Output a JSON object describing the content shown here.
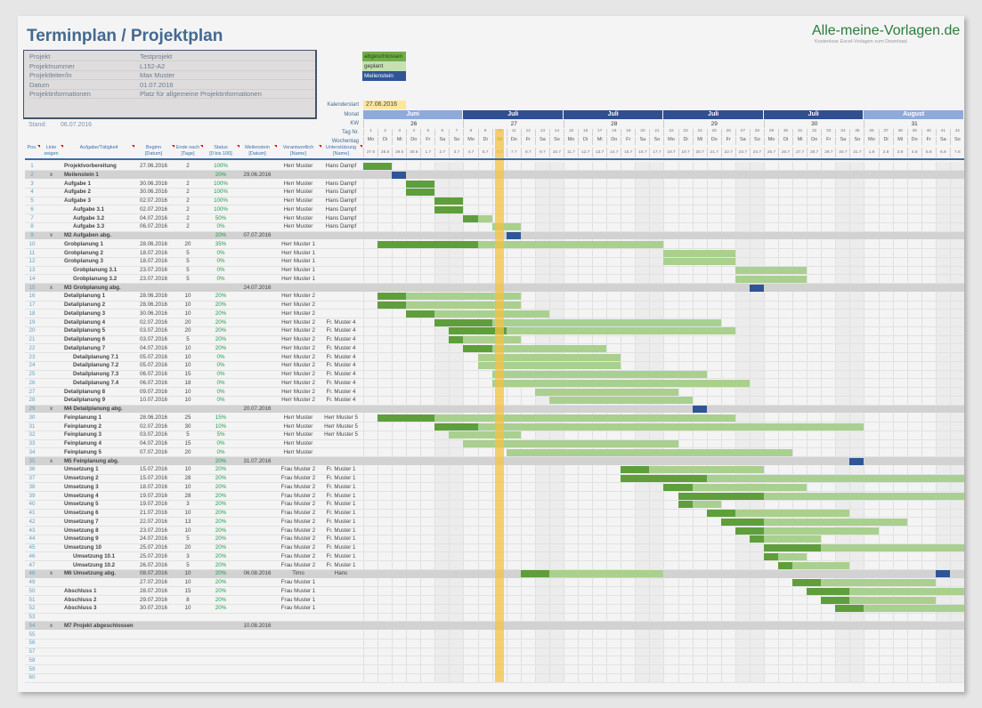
{
  "title": "Terminplan / Projektplan",
  "info": [
    {
      "label": "Projekt",
      "value": "Testprojekt"
    },
    {
      "label": "Projektnummer",
      "value": "L152-A2"
    },
    {
      "label": "Projektleiter/in",
      "value": "Max Muster"
    },
    {
      "label": "Datum",
      "value": "01.07.2016"
    },
    {
      "label": "Projektinformationen",
      "value": "Platz für allgemeine Projektinformationen"
    }
  ],
  "stand_label": "Stand:",
  "stand_value": "06.07.2016",
  "legend": {
    "done": "abgeschlossen",
    "planned": "geplant",
    "milestone": "Meilenstein"
  },
  "logo": {
    "name": "Alle-meine-Vorlagen.de",
    "tagline": "Kostenlose Excel-Vorlagen zum Download"
  },
  "colors": {
    "done": "#5e9e3b",
    "planned": "#a9d08e",
    "milestone": "#2f5597",
    "today": "#f5c242",
    "month_dark": "#2f4f8f",
    "month_light": "#8eaadb",
    "status": "#1e9e4a"
  },
  "calendar": {
    "start_label": "Kalenderstart",
    "start": "27.06.2016",
    "row_labels": {
      "month": "Monat",
      "kw": "KW",
      "daynr": "Tag Nr.",
      "weekday": "Wochentag"
    },
    "today": "06.07.2016",
    "months": [
      {
        "label": "Juni",
        "days": 7,
        "dark": false
      },
      {
        "label": "Juli",
        "days": 7,
        "dark": true
      },
      {
        "label": "Juli",
        "days": 7,
        "dark": true
      },
      {
        "label": "Juli",
        "days": 7,
        "dark": true
      },
      {
        "label": "Juli",
        "days": 7,
        "dark": true
      },
      {
        "label": "August",
        "days": 7,
        "dark": false
      }
    ],
    "kw": [
      "26",
      "27",
      "28",
      "29",
      "30",
      "31"
    ],
    "daynr": [
      "1",
      "2",
      "3",
      "4",
      "5",
      "6",
      "7",
      "8",
      "9",
      "10",
      "11",
      "12",
      "13",
      "14",
      "15",
      "16",
      "17",
      "18",
      "19",
      "20",
      "21",
      "22",
      "23",
      "24",
      "25",
      "26",
      "27",
      "28",
      "29",
      "30",
      "31",
      "32",
      "33",
      "34",
      "35",
      "36",
      "37",
      "38",
      "39",
      "40",
      "41",
      "42"
    ],
    "weekday": [
      "Mo",
      "Di",
      "Mi",
      "Do",
      "Fr",
      "Sa",
      "So",
      "Mo",
      "Di",
      "Mi",
      "Do",
      "Fr",
      "Sa",
      "So",
      "Mo",
      "Di",
      "Mi",
      "Do",
      "Fr",
      "Sa",
      "So",
      "Mo",
      "Di",
      "Mi",
      "Do",
      "Fr",
      "Sa",
      "So",
      "Mo",
      "Di",
      "Mi",
      "Do",
      "Fr",
      "Sa",
      "So",
      "Mo",
      "Di",
      "Mi",
      "Do",
      "Fr",
      "Sa",
      "So"
    ],
    "dates": [
      "27.6",
      "28.6",
      "29.6",
      "30.6",
      "1.7",
      "2.7",
      "3.7",
      "4.7",
      "5.7",
      "6.7",
      "7.7",
      "8.7",
      "9.7",
      "10.7",
      "11.7",
      "12.7",
      "13.7",
      "14.7",
      "15.7",
      "16.7",
      "17.7",
      "18.7",
      "19.7",
      "20.7",
      "21.7",
      "22.7",
      "23.7",
      "24.7",
      "25.7",
      "26.7",
      "27.7",
      "28.7",
      "29.7",
      "30.7",
      "31.7",
      "1.8",
      "2.8",
      "3.8",
      "4.8",
      "5.8",
      "6.8",
      "7.8"
    ]
  },
  "columns": [
    {
      "l1": "Pos.",
      "l2": ""
    },
    {
      "l1": "Linie",
      "l2": "zeigen"
    },
    {
      "l1": "Aufgabe/Tätigkeit",
      "l2": ""
    },
    {
      "l1": "Beginn",
      "l2": "[Datum]"
    },
    {
      "l1": "Ende nach",
      "l2": "[Tage]"
    },
    {
      "l1": "Status",
      "l2": "[0 bis 100]"
    },
    {
      "l1": "Meilenstein",
      "l2": "[Datum]"
    },
    {
      "l1": "Verantwortlich",
      "l2": "[Name]"
    },
    {
      "l1": "Unterstützung",
      "l2": "[Name]"
    }
  ],
  "rows": [
    {
      "pos": "1",
      "task": "Projektvorbereitung",
      "lvl": 0,
      "begin": "27.06.2016",
      "days": "2",
      "status": "100%",
      "ms": "",
      "resp": "Herr Muster",
      "sup": "Hans Dampf"
    },
    {
      "pos": "2",
      "m": "x",
      "task": "Meilenstein 1",
      "lvl": 0,
      "begin": "",
      "days": "",
      "status": "20%",
      "ms": "29.06.2016",
      "resp": "",
      "sup": ""
    },
    {
      "pos": "3",
      "task": "Aufgabe 1",
      "lvl": 0,
      "begin": "30.06.2016",
      "days": "2",
      "status": "100%",
      "ms": "",
      "resp": "Herr Muster",
      "sup": "Hans Dampf"
    },
    {
      "pos": "4",
      "task": "Aufgabe 2",
      "lvl": 0,
      "begin": "30.06.2016",
      "days": "2",
      "status": "100%",
      "ms": "",
      "resp": "Herr Muster",
      "sup": "Hans Dampf"
    },
    {
      "pos": "5",
      "task": "Aufgabe 3",
      "lvl": 0,
      "begin": "02.07.2016",
      "days": "2",
      "status": "100%",
      "ms": "",
      "resp": "Herr Muster",
      "sup": "Hans Dampf"
    },
    {
      "pos": "6",
      "task": "Aufgabe 3.1",
      "lvl": 1,
      "begin": "02.07.2016",
      "days": "2",
      "status": "100%",
      "ms": "",
      "resp": "Herr Muster",
      "sup": "Hans Dampf"
    },
    {
      "pos": "7",
      "task": "Aufgabe 3.2",
      "lvl": 1,
      "begin": "04.07.2016",
      "days": "2",
      "status": "50%",
      "ms": "",
      "resp": "Herr Muster",
      "sup": "Hans Dampf"
    },
    {
      "pos": "8",
      "task": "Aufgabe 3.3",
      "lvl": 1,
      "begin": "06.07.2016",
      "days": "2",
      "status": "0%",
      "ms": "",
      "resp": "Herr Muster",
      "sup": "Hans Dampf"
    },
    {
      "pos": "9",
      "m": "x",
      "task": "M2 Aufgaben abg.",
      "lvl": 0,
      "begin": "",
      "days": "",
      "status": "20%",
      "ms": "07.07.2016",
      "resp": "",
      "sup": ""
    },
    {
      "pos": "10",
      "task": "Grobplanung 1",
      "lvl": 0,
      "begin": "28.06.2016",
      "days": "20",
      "status": "35%",
      "ms": "",
      "resp": "Herr Muster 1",
      "sup": ""
    },
    {
      "pos": "11",
      "task": "Grobplanung 2",
      "lvl": 0,
      "begin": "18.07.2016",
      "days": "5",
      "status": "0%",
      "ms": "",
      "resp": "Herr Muster 1",
      "sup": ""
    },
    {
      "pos": "12",
      "task": "Grobplanung 3",
      "lvl": 0,
      "begin": "18.07.2016",
      "days": "5",
      "status": "0%",
      "ms": "",
      "resp": "Herr Muster 1",
      "sup": ""
    },
    {
      "pos": "13",
      "task": "Grobplanung 3.1",
      "lvl": 1,
      "begin": "23.07.2016",
      "days": "5",
      "status": "0%",
      "ms": "",
      "resp": "Herr Muster 1",
      "sup": ""
    },
    {
      "pos": "14",
      "task": "Grobplanung 3.2",
      "lvl": 1,
      "begin": "23.07.2016",
      "days": "5",
      "status": "0%",
      "ms": "",
      "resp": "Herr Muster 1",
      "sup": ""
    },
    {
      "pos": "15",
      "m": "x",
      "task": "M3 Grobplanung abg.",
      "lvl": 0,
      "begin": "",
      "days": "",
      "status": "",
      "ms": "24.07.2016",
      "resp": "",
      "sup": ""
    },
    {
      "pos": "16",
      "task": "Detailplanung 1",
      "lvl": 0,
      "begin": "28.06.2016",
      "days": "10",
      "status": "20%",
      "ms": "",
      "resp": "Herr Muster 2",
      "sup": ""
    },
    {
      "pos": "17",
      "task": "Detailplanung 2",
      "lvl": 0,
      "begin": "28.06.2016",
      "days": "10",
      "status": "20%",
      "ms": "",
      "resp": "Herr Muster 2",
      "sup": ""
    },
    {
      "pos": "18",
      "task": "Detailplanung 3",
      "lvl": 0,
      "begin": "30.06.2016",
      "days": "10",
      "status": "20%",
      "ms": "",
      "resp": "Herr Muster 2",
      "sup": ""
    },
    {
      "pos": "19",
      "task": "Detailplanung 4",
      "lvl": 0,
      "begin": "02.07.2016",
      "days": "20",
      "status": "20%",
      "ms": "",
      "resp": "Herr Muster 2",
      "sup": "Fr. Muster 4"
    },
    {
      "pos": "20",
      "task": "Detailplanung 5",
      "lvl": 0,
      "begin": "03.07.2016",
      "days": "20",
      "status": "20%",
      "ms": "",
      "resp": "Herr Muster 2",
      "sup": "Fr. Muster 4"
    },
    {
      "pos": "21",
      "task": "Detailplanung 6",
      "lvl": 0,
      "begin": "03.07.2016",
      "days": "5",
      "status": "20%",
      "ms": "",
      "resp": "Herr Muster 2",
      "sup": "Fr. Muster 4"
    },
    {
      "pos": "22",
      "task": "Detailplanung 7",
      "lvl": 0,
      "begin": "04.07.2016",
      "days": "10",
      "status": "20%",
      "ms": "",
      "resp": "Herr Muster 2",
      "sup": "Fr. Muster 4"
    },
    {
      "pos": "23",
      "task": "Detailplanung 7.1",
      "lvl": 1,
      "begin": "05.07.2016",
      "days": "10",
      "status": "0%",
      "ms": "",
      "resp": "Herr Muster 2",
      "sup": "Fr. Muster 4"
    },
    {
      "pos": "24",
      "task": "Detailplanung 7.2",
      "lvl": 1,
      "begin": "05.07.2016",
      "days": "10",
      "status": "0%",
      "ms": "",
      "resp": "Herr Muster 2",
      "sup": "Fr. Muster 4"
    },
    {
      "pos": "25",
      "task": "Detailplanung 7.3",
      "lvl": 1,
      "begin": "06.07.2016",
      "days": "15",
      "status": "0%",
      "ms": "",
      "resp": "Herr Muster 2",
      "sup": "Fr. Muster 4"
    },
    {
      "pos": "26",
      "task": "Detailplanung 7.4",
      "lvl": 1,
      "begin": "06.07.2016",
      "days": "18",
      "status": "0%",
      "ms": "",
      "resp": "Herr Muster 2",
      "sup": "Fr. Muster 4"
    },
    {
      "pos": "27",
      "task": "Detailplanung 8",
      "lvl": 0,
      "begin": "09.07.2016",
      "days": "10",
      "status": "0%",
      "ms": "",
      "resp": "Herr Muster 2",
      "sup": "Fr. Muster 4"
    },
    {
      "pos": "28",
      "task": "Detailplanung 9",
      "lvl": 0,
      "begin": "10.07.2016",
      "days": "10",
      "status": "0%",
      "ms": "",
      "resp": "Herr Muster 2",
      "sup": "Fr. Muster 4"
    },
    {
      "pos": "29",
      "m": "x",
      "task": "M4 Detailplanung abg.",
      "lvl": 0,
      "begin": "",
      "days": "",
      "status": "",
      "ms": "20.07.2016",
      "resp": "",
      "sup": ""
    },
    {
      "pos": "30",
      "task": "Feinplanung 1",
      "lvl": 0,
      "begin": "28.06.2016",
      "days": "25",
      "status": "15%",
      "ms": "",
      "resp": "Herr Muster",
      "sup": "Herr Muster 5"
    },
    {
      "pos": "31",
      "task": "Feinplanung 2",
      "lvl": 0,
      "begin": "02.07.2016",
      "days": "30",
      "status": "10%",
      "ms": "",
      "resp": "Herr Muster",
      "sup": "Herr Muster 5"
    },
    {
      "pos": "32",
      "task": "Feinplanung 3",
      "lvl": 0,
      "begin": "03.07.2016",
      "days": "5",
      "status": "5%",
      "ms": "",
      "resp": "Herr Muster",
      "sup": "Herr Muster 5"
    },
    {
      "pos": "33",
      "task": "Feinplanung 4",
      "lvl": 0,
      "begin": "04.07.2016",
      "days": "15",
      "status": "0%",
      "ms": "",
      "resp": "Herr Muster",
      "sup": ""
    },
    {
      "pos": "34",
      "task": "Feinplanung 5",
      "lvl": 0,
      "begin": "07.07.2016",
      "days": "20",
      "status": "0%",
      "ms": "",
      "resp": "Herr Muster",
      "sup": ""
    },
    {
      "pos": "35",
      "m": "x",
      "task": "M5 Feinplanung abg.",
      "lvl": 0,
      "begin": "",
      "days": "",
      "status": "20%",
      "ms": "31.07.2016",
      "resp": "",
      "sup": ""
    },
    {
      "pos": "36",
      "task": "Umsetzung 1",
      "lvl": 0,
      "begin": "15.07.2016",
      "days": "10",
      "status": "20%",
      "ms": "",
      "resp": "Frau Muster 2",
      "sup": "Fr. Muster 1"
    },
    {
      "pos": "37",
      "task": "Umsetzung 2",
      "lvl": 0,
      "begin": "15.07.2016",
      "days": "28",
      "status": "20%",
      "ms": "",
      "resp": "Frau Muster 2",
      "sup": "Fr. Muster 1"
    },
    {
      "pos": "38",
      "task": "Umsetzung 3",
      "lvl": 0,
      "begin": "18.07.2016",
      "days": "10",
      "status": "20%",
      "ms": "",
      "resp": "Frau Muster 2",
      "sup": "Fr. Muster 1"
    },
    {
      "pos": "39",
      "task": "Umsetzung 4",
      "lvl": 0,
      "begin": "19.07.2016",
      "days": "28",
      "status": "20%",
      "ms": "",
      "resp": "Frau Muster 2",
      "sup": "Fr. Muster 1"
    },
    {
      "pos": "40",
      "task": "Umsetzung 5",
      "lvl": 0,
      "begin": "19.07.2016",
      "days": "3",
      "status": "20%",
      "ms": "",
      "resp": "Frau Muster 2",
      "sup": "Fr. Muster 1"
    },
    {
      "pos": "41",
      "task": "Umsetzung 6",
      "lvl": 0,
      "begin": "21.07.2016",
      "days": "10",
      "status": "20%",
      "ms": "",
      "resp": "Frau Muster 2",
      "sup": "Fr. Muster 1"
    },
    {
      "pos": "42",
      "task": "Umsetzung 7",
      "lvl": 0,
      "begin": "22.07.2016",
      "days": "13",
      "status": "20%",
      "ms": "",
      "resp": "Frau Muster 2",
      "sup": "Fr. Muster 1"
    },
    {
      "pos": "43",
      "task": "Umsetzung 8",
      "lvl": 0,
      "begin": "23.07.2016",
      "days": "10",
      "status": "20%",
      "ms": "",
      "resp": "Frau Muster 2",
      "sup": "Fr. Muster 1"
    },
    {
      "pos": "44",
      "task": "Umsetzung 9",
      "lvl": 0,
      "begin": "24.07.2016",
      "days": "5",
      "status": "20%",
      "ms": "",
      "resp": "Frau Muster 2",
      "sup": "Fr. Muster 1"
    },
    {
      "pos": "45",
      "task": "Umsetzung 10",
      "lvl": 0,
      "begin": "25.07.2016",
      "days": "20",
      "status": "20%",
      "ms": "",
      "resp": "Frau Muster 2",
      "sup": "Fr. Muster 1"
    },
    {
      "pos": "46",
      "task": "Umsetzung 10.1",
      "lvl": 1,
      "begin": "25.07.2016",
      "days": "3",
      "status": "20%",
      "ms": "",
      "resp": "Frau Muster 2",
      "sup": "Fr. Muster 1"
    },
    {
      "pos": "47",
      "task": "Umsetzung 10.2",
      "lvl": 1,
      "begin": "26.07.2016",
      "days": "5",
      "status": "20%",
      "ms": "",
      "resp": "Frau Muster 2",
      "sup": "Fr. Muster 1"
    },
    {
      "pos": "48",
      "m": "x",
      "task": "M6 Umsetzung abg.",
      "lvl": 0,
      "begin": "08.07.2016",
      "days": "10",
      "status": "20%",
      "ms": "06.08.2016",
      "resp": "Timo",
      "sup": "Hans"
    },
    {
      "pos": "49",
      "task": "",
      "lvl": 0,
      "begin": "27.07.2016",
      "days": "10",
      "status": "20%",
      "ms": "",
      "resp": "Frau Muster 1",
      "sup": ""
    },
    {
      "pos": "50",
      "task": "Abschluss 1",
      "lvl": 0,
      "begin": "28.07.2016",
      "days": "15",
      "status": "20%",
      "ms": "",
      "resp": "Frau Muster 1",
      "sup": ""
    },
    {
      "pos": "51",
      "task": "Abschluss 2",
      "lvl": 0,
      "begin": "29.07.2016",
      "days": "8",
      "status": "20%",
      "ms": "",
      "resp": "Frau Muster 1",
      "sup": ""
    },
    {
      "pos": "52",
      "task": "Abschluss 3",
      "lvl": 0,
      "begin": "30.07.2016",
      "days": "10",
      "status": "20%",
      "ms": "",
      "resp": "Frau Muster 1",
      "sup": ""
    },
    {
      "pos": "53",
      "task": "",
      "lvl": 0,
      "begin": "",
      "days": "",
      "status": "",
      "ms": "",
      "resp": "",
      "sup": ""
    },
    {
      "pos": "54",
      "m": "x",
      "task": "M7 Projekt abgeschlossen",
      "lvl": 0,
      "begin": "",
      "days": "",
      "status": "",
      "ms": "10.08.2016",
      "resp": "",
      "sup": ""
    },
    {
      "pos": "55"
    },
    {
      "pos": "56"
    },
    {
      "pos": "57"
    },
    {
      "pos": "58"
    },
    {
      "pos": "59"
    },
    {
      "pos": "60"
    }
  ]
}
